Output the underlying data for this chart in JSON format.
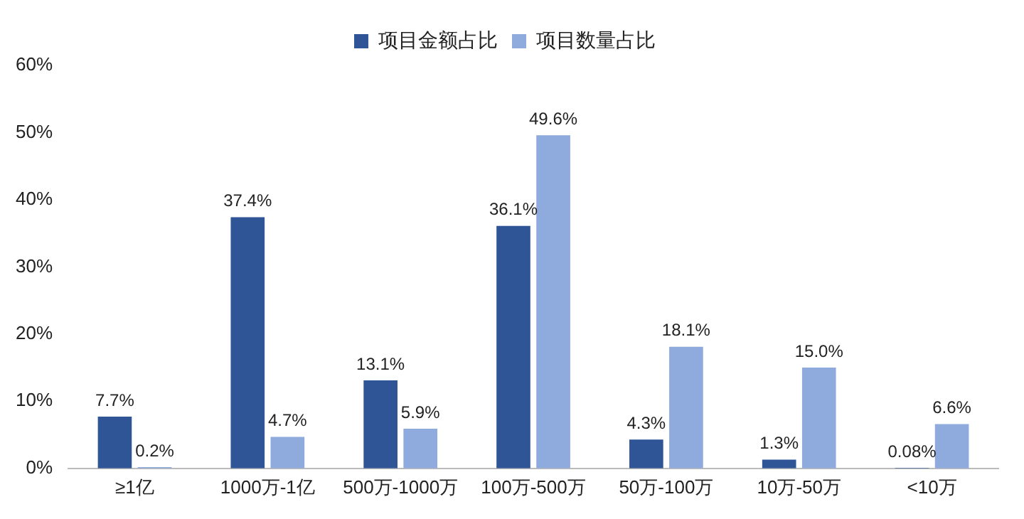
{
  "chart_data": {
    "type": "bar",
    "categories": [
      "≥1亿",
      "1000万-1亿",
      "500万-1000万",
      "100万-500万",
      "50万-100万",
      "10万-50万",
      "<10万"
    ],
    "series": [
      {
        "name": "项目金额占比",
        "color": "#2f5597",
        "values": [
          7.7,
          37.4,
          13.1,
          36.1,
          4.3,
          1.3,
          0.08
        ],
        "value_labels": [
          "7.7%",
          "37.4%",
          "13.1%",
          "36.1%",
          "4.3%",
          "1.3%",
          "0.08%"
        ]
      },
      {
        "name": "项目数量占比",
        "color": "#8faadc",
        "values": [
          0.2,
          4.7,
          5.9,
          49.6,
          18.1,
          15.0,
          6.6
        ],
        "value_labels": [
          "0.2%",
          "4.7%",
          "5.9%",
          "49.6%",
          "18.1%",
          "15.0%",
          "6.6%"
        ]
      }
    ],
    "ylim": [
      0,
      60
    ],
    "yticks": [
      {
        "value": 0,
        "label": "0%"
      },
      {
        "value": 10,
        "label": "10%"
      },
      {
        "value": 20,
        "label": "20%"
      },
      {
        "value": 30,
        "label": "30%"
      },
      {
        "value": 40,
        "label": "40%"
      },
      {
        "value": 50,
        "label": "50%"
      },
      {
        "value": 60,
        "label": "60%"
      }
    ],
    "grid": false,
    "legend": "top"
  }
}
